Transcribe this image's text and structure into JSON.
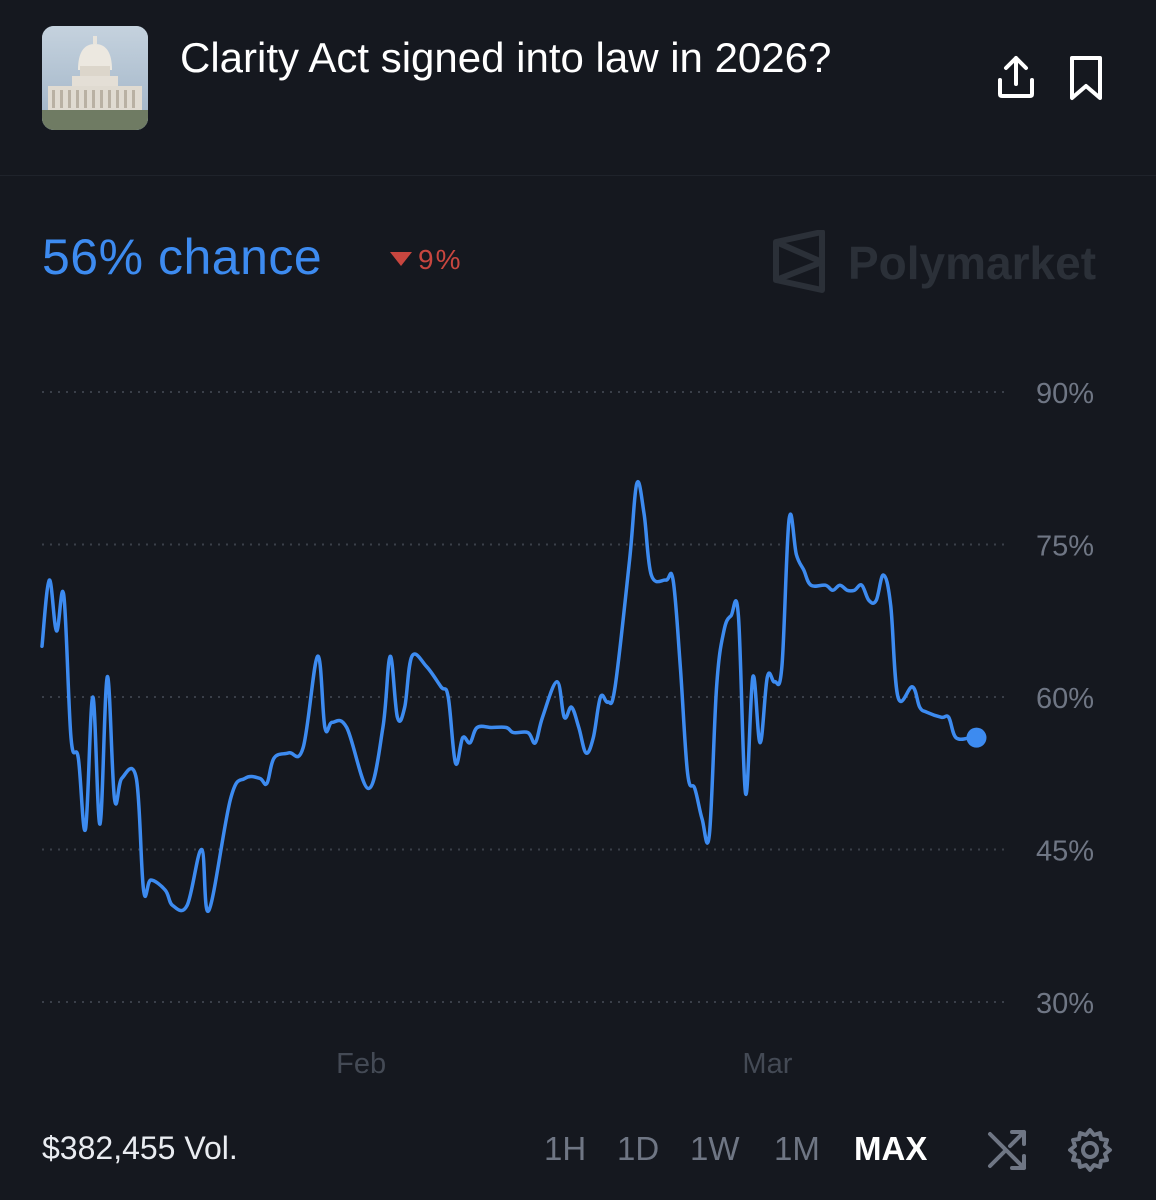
{
  "header": {
    "title": "Clarity Act signed into law in 2026?",
    "thumbnail_icon": "capitol-building-icon",
    "share_icon": "share-icon",
    "bookmark_icon": "bookmark-icon"
  },
  "summary": {
    "chance_text": "56% chance",
    "change_text": "9%",
    "change_direction": "down",
    "brand": "Polymarket"
  },
  "colors": {
    "background": "#15181f",
    "line": "#3d8bf0",
    "negative": "#c8463f",
    "axis_text": "#6f7684",
    "month_text": "#444a55"
  },
  "chart_data": {
    "type": "line",
    "title": "",
    "xlabel": "",
    "ylabel": "",
    "ylim": [
      30,
      90
    ],
    "yticks": [
      90,
      75,
      60,
      45,
      30
    ],
    "ytick_labels": [
      "90%",
      "75%",
      "60%",
      "45%",
      "30%"
    ],
    "x_tick_labels": [
      {
        "label": "Feb",
        "date": "2026-02-01"
      },
      {
        "label": "Mar",
        "date": "2026-03-01"
      }
    ],
    "grid": true,
    "x_start": "2026-01-10",
    "x_end": "2026-03-16",
    "series": [
      {
        "points": [
          [
            "2026-01-10",
            65
          ],
          [
            "2026-01-10T12:00",
            71.5
          ],
          [
            "2026-01-11",
            66.5
          ],
          [
            "2026-01-11T12:00",
            70
          ],
          [
            "2026-01-12",
            56
          ],
          [
            "2026-01-12T12:00",
            54
          ],
          [
            "2026-01-13",
            47
          ],
          [
            "2026-01-13T12:00",
            60
          ],
          [
            "2026-01-14",
            47.5
          ],
          [
            "2026-01-14T12:00",
            62
          ],
          [
            "2026-01-15",
            50
          ],
          [
            "2026-01-15T12:00",
            52
          ],
          [
            "2026-01-16T12:00",
            52
          ],
          [
            "2026-01-17",
            41
          ],
          [
            "2026-01-17T12:00",
            42
          ],
          [
            "2026-01-18T12:00",
            41
          ],
          [
            "2026-01-19",
            39.5
          ],
          [
            "2026-01-20",
            39.5
          ],
          [
            "2026-01-21",
            45
          ],
          [
            "2026-01-21T12:00",
            39
          ],
          [
            "2026-01-23",
            50
          ],
          [
            "2026-01-24",
            52
          ],
          [
            "2026-01-25",
            52
          ],
          [
            "2026-01-25T12:00",
            51.5
          ],
          [
            "2026-01-26",
            54
          ],
          [
            "2026-01-27",
            54.5
          ],
          [
            "2026-01-28",
            55
          ],
          [
            "2026-01-29",
            64
          ],
          [
            "2026-01-29T12:00",
            57
          ],
          [
            "2026-01-30",
            57.5
          ],
          [
            "2026-01-31",
            57
          ],
          [
            "2026-02-01T12:00",
            51
          ],
          [
            "2026-02-02T12:00",
            57
          ],
          [
            "2026-02-03",
            64
          ],
          [
            "2026-02-03T12:00",
            58
          ],
          [
            "2026-02-04",
            59
          ],
          [
            "2026-02-04T12:00",
            64
          ],
          [
            "2026-02-05T12:00",
            63
          ],
          [
            "2026-02-06T12:00",
            61
          ],
          [
            "2026-02-07",
            60
          ],
          [
            "2026-02-07T12:00",
            53.5
          ],
          [
            "2026-02-08",
            56
          ],
          [
            "2026-02-08T12:00",
            55.5
          ],
          [
            "2026-02-09",
            57
          ],
          [
            "2026-02-10",
            57
          ],
          [
            "2026-02-11",
            57
          ],
          [
            "2026-02-11T12:00",
            56.5
          ],
          [
            "2026-02-12T12:00",
            56.5
          ],
          [
            "2026-02-13",
            55.5
          ],
          [
            "2026-02-13T12:00",
            58
          ],
          [
            "2026-02-14T12:00",
            61.5
          ],
          [
            "2026-02-15",
            58
          ],
          [
            "2026-02-15T12:00",
            59
          ],
          [
            "2026-02-16",
            57
          ],
          [
            "2026-02-16T12:00",
            54.5
          ],
          [
            "2026-02-17",
            56
          ],
          [
            "2026-02-17T12:00",
            60
          ],
          [
            "2026-02-18",
            59.5
          ],
          [
            "2026-02-18T12:00",
            61
          ],
          [
            "2026-02-19T12:00",
            73.5
          ],
          [
            "2026-02-20",
            81
          ],
          [
            "2026-02-20T12:00",
            78
          ],
          [
            "2026-02-21",
            72
          ],
          [
            "2026-02-22",
            71.5
          ],
          [
            "2026-02-22T12:00",
            71.5
          ],
          [
            "2026-02-23",
            63
          ],
          [
            "2026-02-23T12:00",
            52.5
          ],
          [
            "2026-02-24",
            51
          ],
          [
            "2026-02-24T12:00",
            48
          ],
          [
            "2026-02-25",
            46.5
          ],
          [
            "2026-02-25T12:00",
            61
          ],
          [
            "2026-02-26",
            66.5
          ],
          [
            "2026-02-26T12:00",
            68
          ],
          [
            "2026-02-27",
            68
          ],
          [
            "2026-02-27T12:00",
            50.5
          ],
          [
            "2026-02-28",
            62
          ],
          [
            "2026-02-28T12:00",
            55.5
          ],
          [
            "2026-03-01",
            62
          ],
          [
            "2026-03-01T12:00",
            61.5
          ],
          [
            "2026-03-02",
            63
          ],
          [
            "2026-03-02T12:00",
            77.5
          ],
          [
            "2026-03-03",
            74
          ],
          [
            "2026-03-03T12:00",
            72.5
          ],
          [
            "2026-03-04",
            71
          ],
          [
            "2026-03-05",
            71
          ],
          [
            "2026-03-05T12:00",
            70.5
          ],
          [
            "2026-03-06",
            71
          ],
          [
            "2026-03-06T12:00",
            70.5
          ],
          [
            "2026-03-07",
            70.5
          ],
          [
            "2026-03-07T12:00",
            71
          ],
          [
            "2026-03-08",
            69.5
          ],
          [
            "2026-03-08T12:00",
            69.5
          ],
          [
            "2026-03-09",
            72
          ],
          [
            "2026-03-09T12:00",
            69
          ],
          [
            "2026-03-10",
            60
          ],
          [
            "2026-03-11",
            61
          ],
          [
            "2026-03-11T12:00",
            59
          ],
          [
            "2026-03-12",
            58.5
          ],
          [
            "2026-03-13",
            58
          ],
          [
            "2026-03-13T12:00",
            58
          ],
          [
            "2026-03-14",
            56
          ],
          [
            "2026-03-15",
            56
          ]
        ],
        "last_value": 56
      }
    ]
  },
  "footer": {
    "volume": "$382,455 Vol.",
    "ranges": [
      "1H",
      "1D",
      "1W",
      "1M",
      "MAX"
    ],
    "active_range": "MAX",
    "shuffle_icon": "shuffle-icon",
    "settings_icon": "gear-icon"
  }
}
